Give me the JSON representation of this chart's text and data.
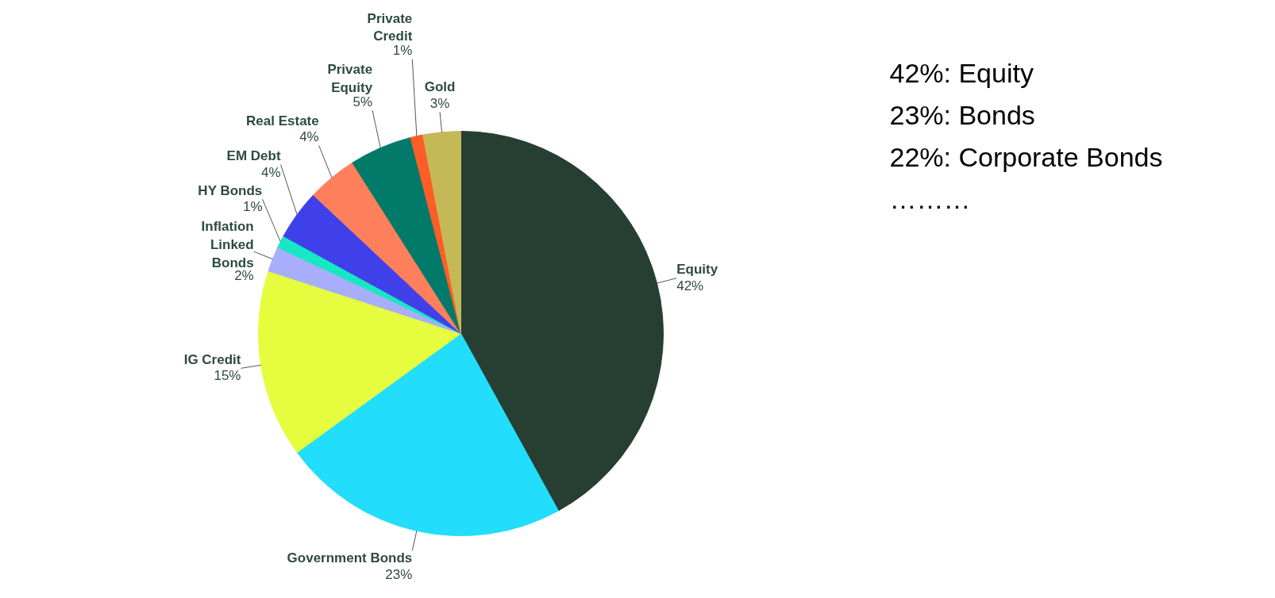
{
  "chart_data": {
    "type": "pie",
    "categories": [
      "Equity",
      "Government Bonds",
      "IG Credit",
      "Inflation\nLinked\nBonds",
      "HY Bonds",
      "EM Debt",
      "Real Estate",
      "Private\nEquity",
      "Private\nCredit",
      "Gold"
    ],
    "values": [
      42,
      23,
      15,
      2,
      1,
      4,
      4,
      5,
      1,
      3
    ],
    "value_labels": [
      "42%",
      "23%",
      "15%",
      "2%",
      "1%",
      "4%",
      "4%",
      "5%",
      "1%",
      "3%"
    ],
    "colors": [
      "#273f33",
      "#22ddfb",
      "#e5fd3e",
      "#a8aefb",
      "#18e7c4",
      "#4040ea",
      "#fe7f5c",
      "#027a6a",
      "#fd5d26",
      "#c5b957"
    ],
    "annotations": [
      "42%: Equity",
      "23%: Bonds",
      "22%: Corporate Bonds",
      "………"
    ]
  }
}
